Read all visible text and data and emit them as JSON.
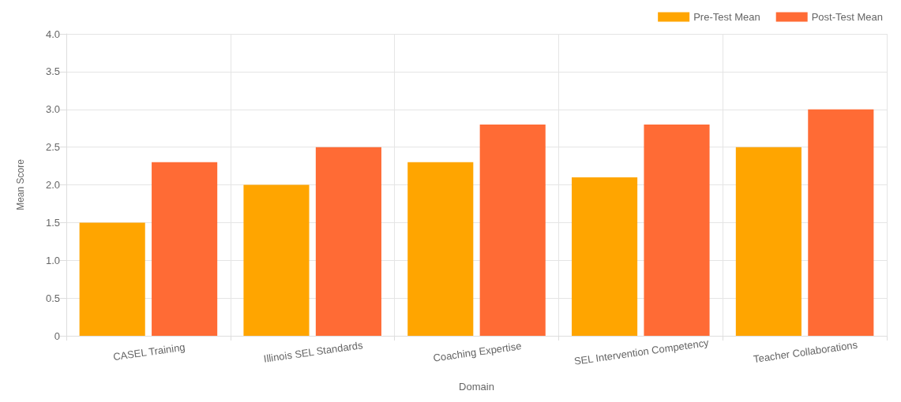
{
  "chart_data": {
    "type": "bar",
    "xlabel": "Domain",
    "ylabel": "Mean Score",
    "categories": [
      "CASEL Training",
      "Illinois SEL Standards",
      "Coaching Expertise",
      "SEL Intervention Competency",
      "Teacher Collaborations"
    ],
    "series": [
      {
        "name": "Pre-Test Mean",
        "color": "#ffa500",
        "values": [
          1.5,
          2.0,
          2.3,
          2.1,
          2.5
        ]
      },
      {
        "name": "Post-Test Mean",
        "color": "#ff6b35",
        "values": [
          2.3,
          2.5,
          2.8,
          2.8,
          3.0
        ]
      }
    ],
    "ylim": [
      0,
      4
    ],
    "yticks": [
      {
        "value": 0,
        "label": "0"
      },
      {
        "value": 0.5,
        "label": "0.5"
      },
      {
        "value": 1,
        "label": "1.0"
      },
      {
        "value": 1.5,
        "label": "1.5"
      },
      {
        "value": 2,
        "label": "2.0"
      },
      {
        "value": 2.5,
        "label": "2.5"
      },
      {
        "value": 3,
        "label": "3.0"
      },
      {
        "value": 3.5,
        "label": "3.5"
      },
      {
        "value": 4,
        "label": "4.0"
      }
    ],
    "grid": true,
    "legend": "top right"
  }
}
